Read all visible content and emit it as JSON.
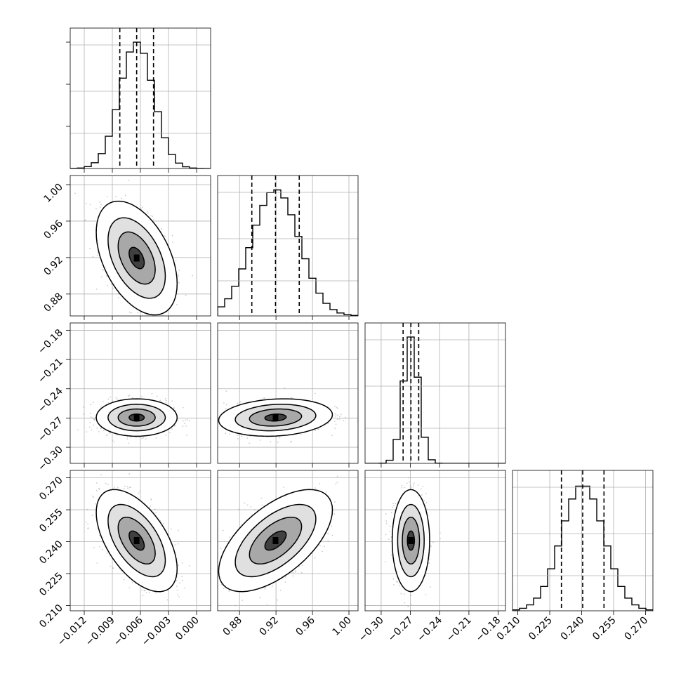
{
  "chart_data": {
    "type": "corner",
    "description_of_panels": "4x4 corner plot: 1D histograms on diagonal with dashed quantile lines, 2D density contours below diagonal",
    "grid": true,
    "params": [
      {
        "range": [
          -0.0135,
          0.0015
        ],
        "ticks": [
          -0.012,
          -0.009,
          -0.006,
          -0.003,
          0.0
        ],
        "tick_labels": [
          "−0.012",
          "−0.009",
          "−0.006",
          "−0.003",
          "0.000"
        ],
        "quantiles": [
          -0.0082,
          -0.0064,
          -0.0046
        ],
        "mean": -0.0064,
        "sd": 0.0018
      },
      {
        "range": [
          0.856,
          1.01
        ],
        "ticks": [
          0.88,
          0.92,
          0.96,
          1.0
        ],
        "tick_labels": [
          "0.88",
          "0.92",
          "0.96",
          "1.00"
        ],
        "quantiles": [
          0.8935,
          0.9195,
          0.9455
        ],
        "mean": 0.9195,
        "sd": 0.026
      },
      {
        "range": [
          -0.3165,
          -0.1725
        ],
        "ticks": [
          -0.3,
          -0.27,
          -0.24,
          -0.21,
          -0.18
        ],
        "tick_labels": [
          "−0.30",
          "−0.27",
          "−0.24",
          "−0.21",
          "−0.18"
        ],
        "quantiles": [
          -0.2775,
          -0.2695,
          -0.2615
        ],
        "mean": -0.2695,
        "sd": 0.008
      },
      {
        "range": [
          0.2075,
          0.2735
        ],
        "ticks": [
          0.21,
          0.225,
          0.24,
          0.255,
          0.27
        ],
        "tick_labels": [
          "0.210",
          "0.225",
          "0.240",
          "0.255",
          "0.270"
        ],
        "quantiles": [
          0.2305,
          0.2405,
          0.2505
        ],
        "mean": 0.2405,
        "sd": 0.01
      }
    ],
    "correlations": {
      "1-0": -0.45,
      "2-0": 0.0,
      "2-1": 0.15,
      "3-0": -0.55,
      "3-1": 0.6,
      "3-2": 0.0
    }
  }
}
